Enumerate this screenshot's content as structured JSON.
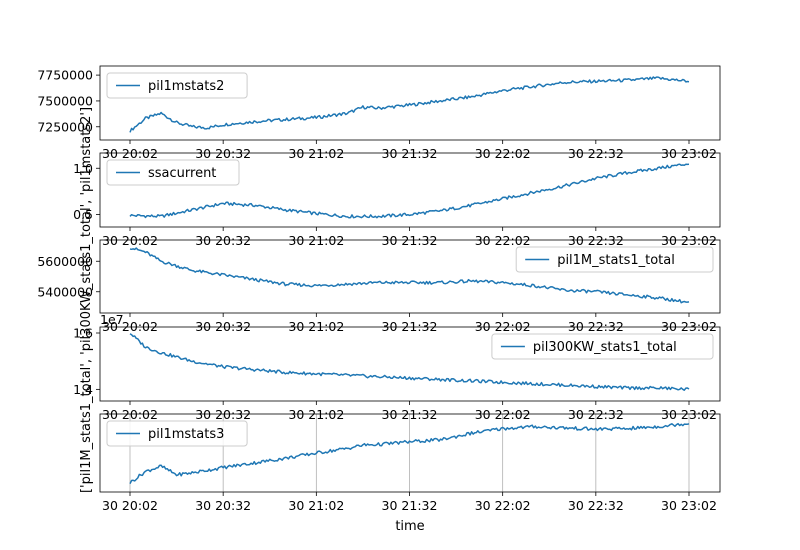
{
  "chart_data": {
    "type": "line",
    "shared_x_ticks": [
      "30 20:02",
      "30 20:32",
      "30 21:02",
      "30 21:32",
      "30 22:02",
      "30 22:32",
      "30 23:02"
    ],
    "xlabel": "time",
    "ylabel": "['pil1M_stats1_total', 'pil300KW_stats1_total', 'pil1mstats2']",
    "line_color": "#1f77b4",
    "panels": [
      {
        "series_name": "pil1mstats2",
        "legend_position": "upper-left",
        "y_ticks": [
          "7250000",
          "7500000",
          "7750000"
        ],
        "y_tick_values": [
          7250000,
          7500000,
          7750000
        ],
        "ylim": [
          7180000,
          7780000
        ],
        "x": [
          0,
          5,
          10,
          15,
          20,
          25,
          30,
          40,
          50,
          60,
          70,
          75,
          80,
          90,
          100,
          110,
          120,
          130,
          140,
          150,
          160,
          170,
          180
        ],
        "y": [
          7210000,
          7330000,
          7380000,
          7290000,
          7250000,
          7240000,
          7270000,
          7300000,
          7320000,
          7340000,
          7380000,
          7440000,
          7430000,
          7460000,
          7500000,
          7540000,
          7600000,
          7640000,
          7680000,
          7690000,
          7700000,
          7720000,
          7690000
        ]
      },
      {
        "series_name": "ssacurrent",
        "legend_position": "upper-left",
        "y_ticks": [
          "0.5",
          "1.0"
        ],
        "y_tick_values": [
          0.5,
          1.0
        ],
        "ylim": [
          0.43,
          1.1
        ],
        "x": [
          0,
          10,
          20,
          30,
          40,
          50,
          60,
          70,
          75,
          80,
          90,
          100,
          110,
          120,
          130,
          140,
          150,
          160,
          170,
          180
        ],
        "y": [
          0.49,
          0.48,
          0.55,
          0.62,
          0.6,
          0.55,
          0.51,
          0.48,
          0.48,
          0.48,
          0.5,
          0.54,
          0.6,
          0.67,
          0.74,
          0.81,
          0.89,
          0.95,
          1.0,
          1.05
        ]
      },
      {
        "series_name": "pil1M_stats1_total",
        "legend_position": "upper-right",
        "y_ticks": [
          "5400000",
          "5600000"
        ],
        "y_tick_values": [
          5400000,
          5600000
        ],
        "ylim": [
          5300000,
          5700000
        ],
        "x": [
          0,
          5,
          10,
          20,
          30,
          40,
          50,
          60,
          70,
          80,
          90,
          100,
          110,
          120,
          130,
          140,
          150,
          160,
          170,
          180
        ],
        "y": [
          5690000,
          5660000,
          5600000,
          5540000,
          5510000,
          5480000,
          5450000,
          5440000,
          5450000,
          5460000,
          5460000,
          5460000,
          5470000,
          5460000,
          5440000,
          5410000,
          5400000,
          5380000,
          5360000,
          5330000
        ]
      },
      {
        "series_name": "pil300KW_stats1_total",
        "legend_position": "upper-right",
        "y_ticks": [
          "1.4",
          "1.6"
        ],
        "y_tick_values": [
          1.4,
          1.6
        ],
        "offset_label": "1e7",
        "ylim": [
          1.38,
          1.6
        ],
        "x": [
          0,
          5,
          10,
          20,
          30,
          40,
          50,
          60,
          70,
          80,
          90,
          100,
          110,
          120,
          130,
          140,
          150,
          160,
          170,
          180
        ],
        "y": [
          1.6,
          1.55,
          1.53,
          1.5,
          1.48,
          1.47,
          1.46,
          1.455,
          1.45,
          1.445,
          1.44,
          1.435,
          1.43,
          1.425,
          1.42,
          1.415,
          1.41,
          1.405,
          1.405,
          1.4
        ]
      },
      {
        "series_name": "pil1mstats3",
        "legend_position": "upper-left",
        "y_ticks": [],
        "grid": true,
        "ylim": [
          0,
          1
        ],
        "x": [
          0,
          5,
          10,
          15,
          20,
          30,
          40,
          50,
          60,
          70,
          75,
          80,
          90,
          100,
          110,
          120,
          130,
          140,
          150,
          160,
          170,
          180
        ],
        "y": [
          0.05,
          0.22,
          0.3,
          0.17,
          0.2,
          0.28,
          0.35,
          0.42,
          0.5,
          0.57,
          0.62,
          0.63,
          0.67,
          0.7,
          0.8,
          0.87,
          0.9,
          0.88,
          0.86,
          0.87,
          0.9,
          0.95
        ]
      }
    ]
  }
}
